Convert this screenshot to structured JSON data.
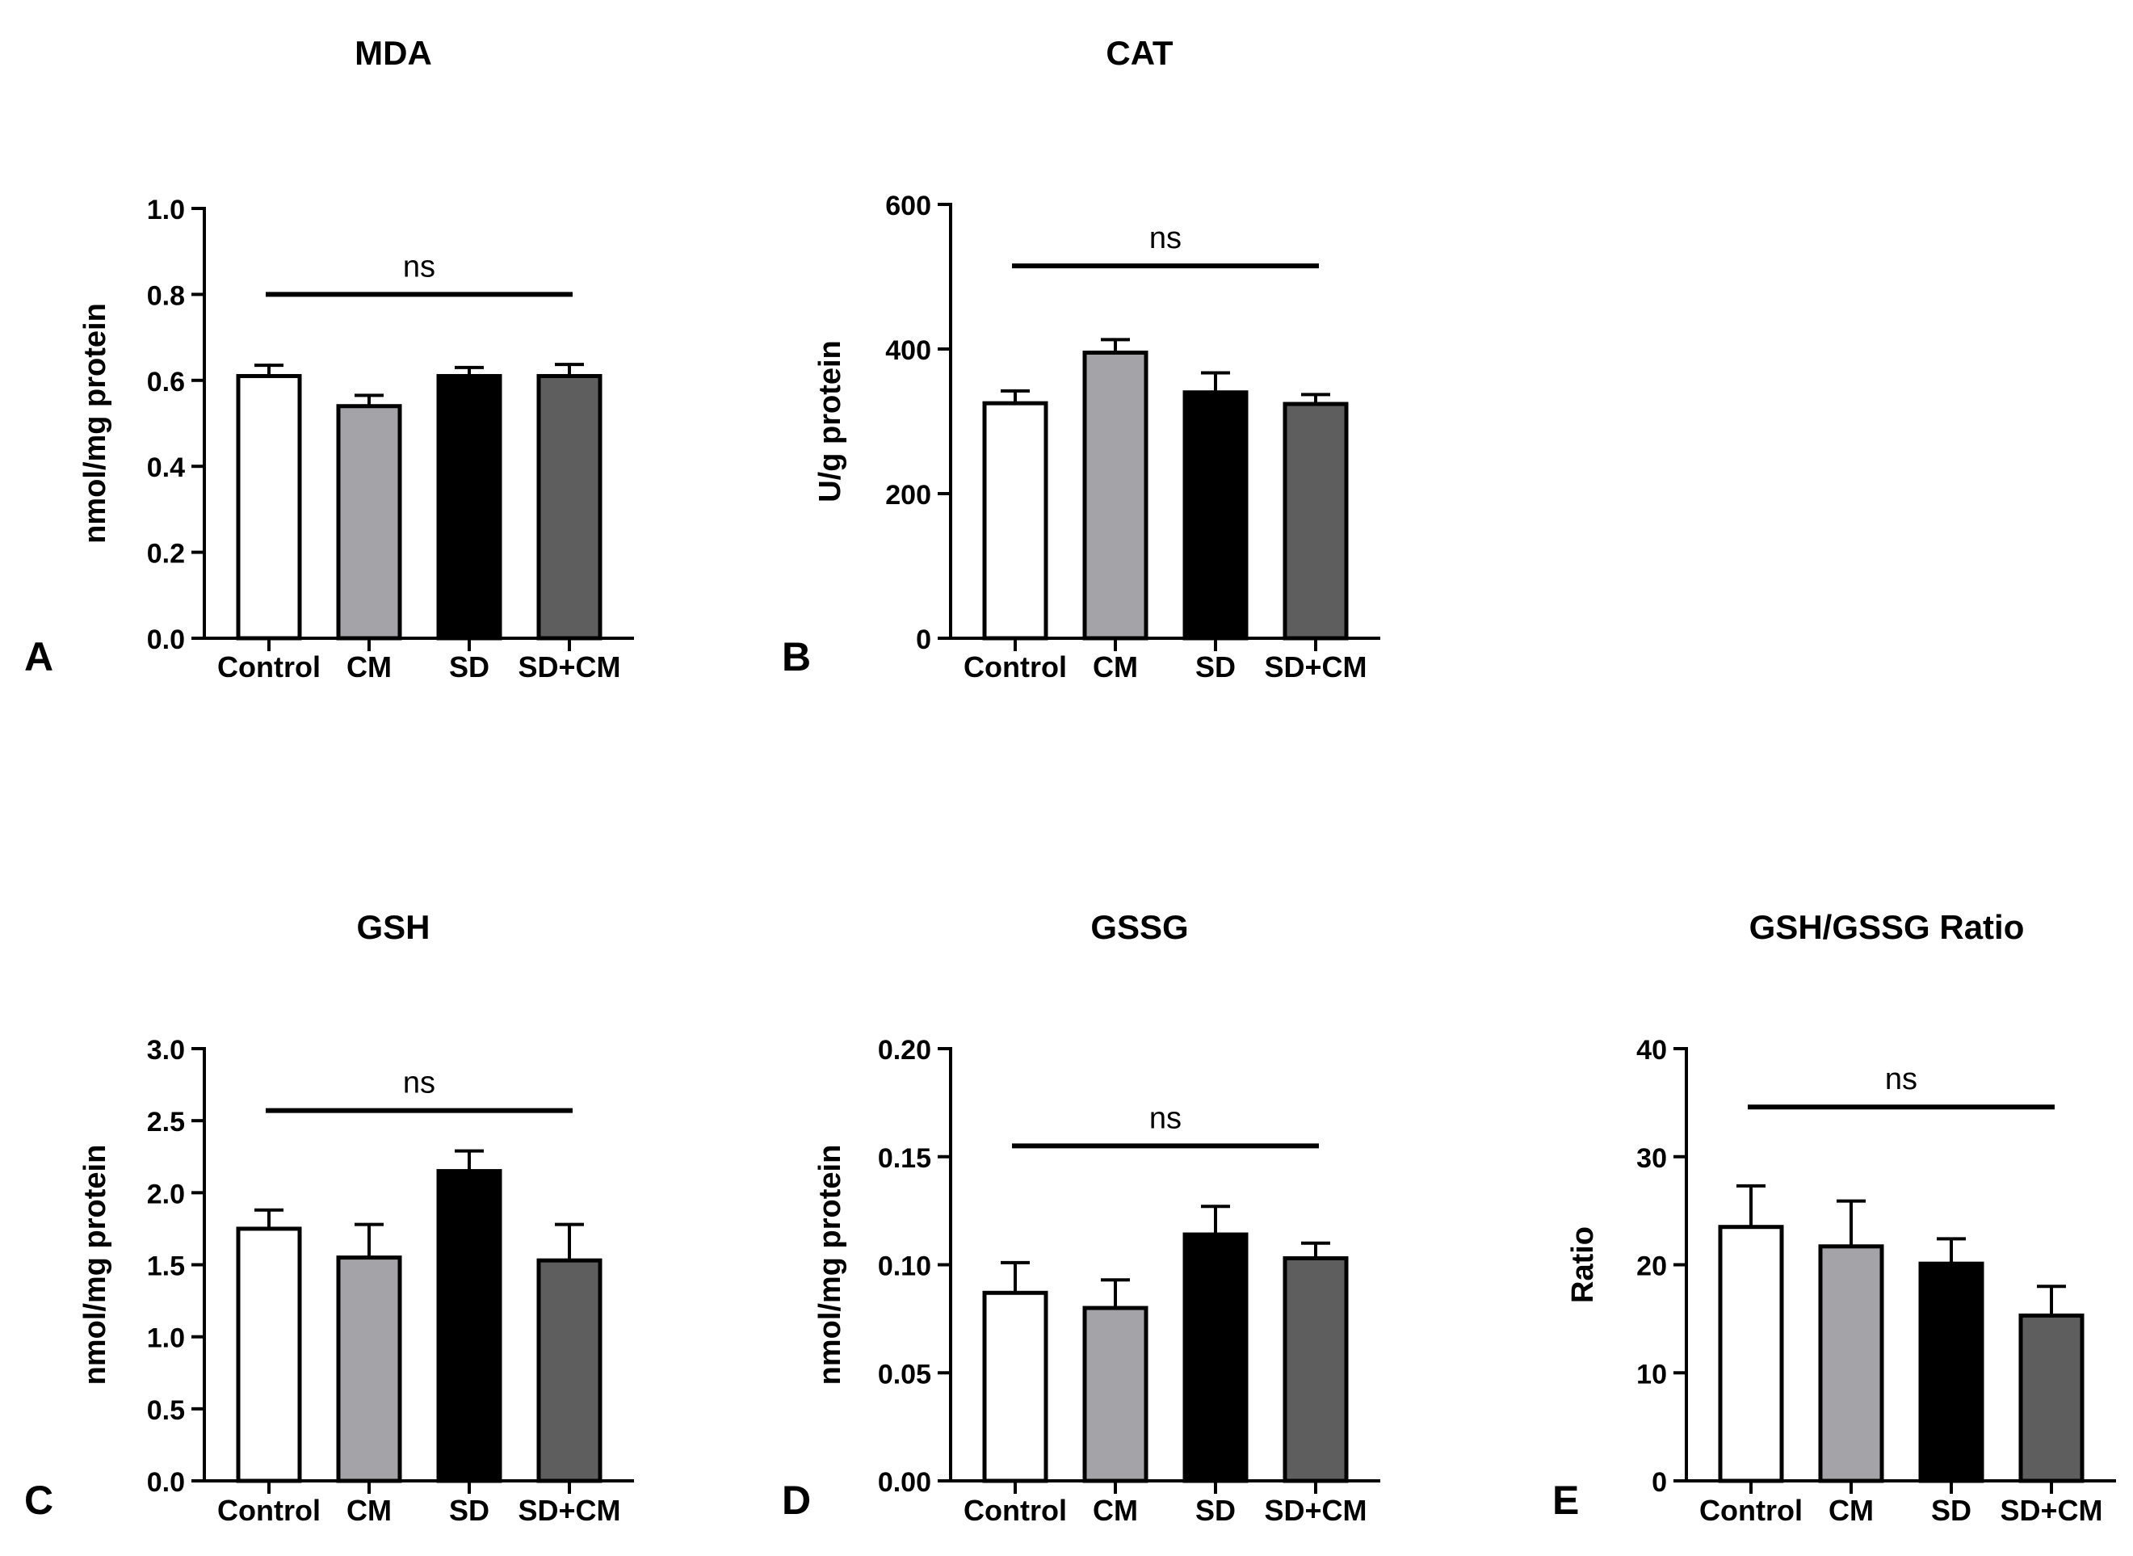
{
  "figure": {
    "categories": [
      "Control",
      "CM",
      "SD",
      "SD+CM"
    ],
    "bar_colors": [
      "#ffffff",
      "#a3a3a8",
      "#000000",
      "#5e5e5e"
    ],
    "line_color": "#000000"
  },
  "chart_data": [
    {
      "type": "bar",
      "panel": "A",
      "title": "MDA",
      "ylabel": "nmol/mg protein",
      "xlabel": "",
      "categories": [
        "Control",
        "CM",
        "SD",
        "SD+CM"
      ],
      "values": [
        0.61,
        0.54,
        0.61,
        0.61
      ],
      "errors": [
        0.025,
        0.025,
        0.02,
        0.027
      ],
      "ylim": [
        0,
        1.0
      ],
      "yticks": [
        0.0,
        0.2,
        0.4,
        0.6,
        0.8,
        1.0
      ],
      "ytick_labels": [
        "0.0",
        "0.2",
        "0.4",
        "0.6",
        "0.8",
        "1.0"
      ],
      "significance": {
        "label": "ns",
        "y": 0.8
      }
    },
    {
      "type": "bar",
      "panel": "B",
      "title": "CAT",
      "ylabel": "U/g protein",
      "xlabel": "",
      "categories": [
        "Control",
        "CM",
        "SD",
        "SD+CM"
      ],
      "values": [
        325,
        395,
        340,
        324
      ],
      "errors": [
        17,
        18,
        27,
        13
      ],
      "ylim": [
        0,
        600
      ],
      "yticks": [
        0,
        200,
        400,
        600
      ],
      "ytick_labels": [
        "0",
        "200",
        "400",
        "600"
      ],
      "significance": {
        "label": "ns",
        "y": 515
      }
    },
    {
      "type": "bar",
      "panel": "C",
      "title": "GSH",
      "ylabel": "nmol/mg protein",
      "xlabel": "",
      "categories": [
        "Control",
        "CM",
        "SD",
        "SD+CM"
      ],
      "values": [
        1.75,
        1.55,
        2.15,
        1.53
      ],
      "errors": [
        0.13,
        0.23,
        0.14,
        0.25
      ],
      "ylim": [
        0,
        3.0
      ],
      "yticks": [
        0.0,
        0.5,
        1.0,
        1.5,
        2.0,
        2.5,
        3.0
      ],
      "ytick_labels": [
        "0.0",
        "0.5",
        "1.0",
        "1.5",
        "2.0",
        "2.5",
        "3.0"
      ],
      "significance": {
        "label": "ns",
        "y": 2.57
      }
    },
    {
      "type": "bar",
      "panel": "D",
      "title": "GSSG",
      "ylabel": "nmol/mg protein",
      "xlabel": "",
      "categories": [
        "Control",
        "CM",
        "SD",
        "SD+CM"
      ],
      "values": [
        0.087,
        0.08,
        0.114,
        0.103
      ],
      "errors": [
        0.014,
        0.013,
        0.013,
        0.007
      ],
      "ylim": [
        0,
        0.2
      ],
      "yticks": [
        0.0,
        0.05,
        0.1,
        0.15,
        0.2
      ],
      "ytick_labels": [
        "0.00",
        "0.05",
        "0.10",
        "0.15",
        "0.20"
      ],
      "significance": {
        "label": "ns",
        "y": 0.155
      }
    },
    {
      "type": "bar",
      "panel": "E",
      "title": "GSH/GSSG Ratio",
      "ylabel": "Ratio",
      "xlabel": "",
      "categories": [
        "Control",
        "CM",
        "SD",
        "SD+CM"
      ],
      "values": [
        23.5,
        21.7,
        20.1,
        15.3
      ],
      "errors": [
        3.8,
        4.2,
        2.3,
        2.7
      ],
      "ylim": [
        0,
        40
      ],
      "yticks": [
        0,
        10,
        20,
        30,
        40
      ],
      "ytick_labels": [
        "0",
        "10",
        "20",
        "30",
        "40"
      ],
      "significance": {
        "label": "ns",
        "y": 34.6
      }
    }
  ]
}
